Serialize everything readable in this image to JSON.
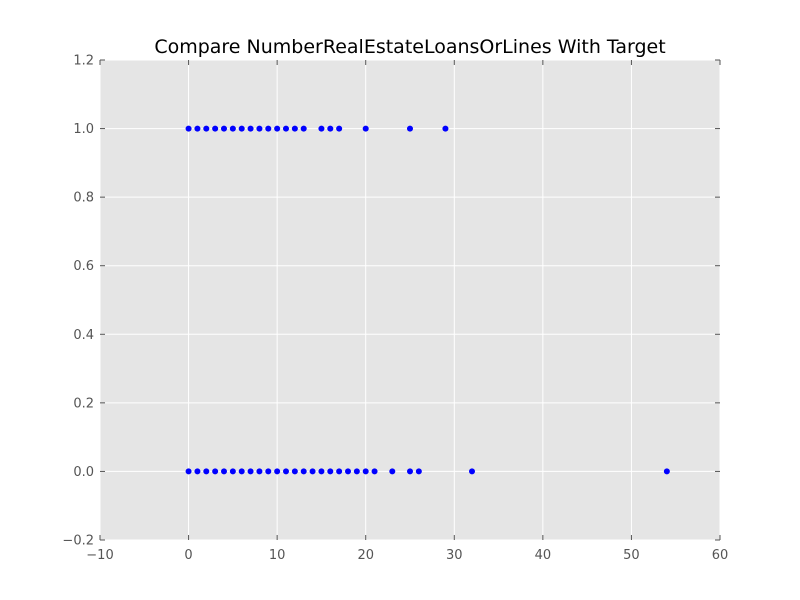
{
  "chart_data": {
    "type": "scatter",
    "title": "Compare NumberRealEstateLoansOrLines With Target",
    "xlabel": "",
    "ylabel": "",
    "xlim": [
      -10,
      60
    ],
    "ylim": [
      -0.2,
      1.2
    ],
    "x_ticks": [
      "−10",
      "0",
      "10",
      "20",
      "30",
      "40",
      "50",
      "60"
    ],
    "x_tick_values": [
      -10,
      0,
      10,
      20,
      30,
      40,
      50,
      60
    ],
    "y_ticks": [
      "−0.2",
      "0.0",
      "0.2",
      "0.4",
      "0.6",
      "0.8",
      "1.0",
      "1.2"
    ],
    "y_tick_values": [
      -0.2,
      0.0,
      0.2,
      0.4,
      0.6,
      0.8,
      1.0,
      1.2
    ],
    "grid": true,
    "colors": {
      "plot_background": "#e5e5e5",
      "grid": "#ffffff",
      "marker": "#0000ff"
    },
    "series": [
      {
        "points": [
          [
            0,
            1
          ],
          [
            1,
            1
          ],
          [
            2,
            1
          ],
          [
            3,
            1
          ],
          [
            4,
            1
          ],
          [
            5,
            1
          ],
          [
            6,
            1
          ],
          [
            7,
            1
          ],
          [
            8,
            1
          ],
          [
            9,
            1
          ],
          [
            10,
            1
          ],
          [
            11,
            1
          ],
          [
            12,
            1
          ],
          [
            13,
            1
          ],
          [
            15,
            1
          ],
          [
            16,
            1
          ],
          [
            17,
            1
          ],
          [
            20,
            1
          ],
          [
            25,
            1
          ],
          [
            29,
            1
          ],
          [
            0,
            0
          ],
          [
            1,
            0
          ],
          [
            2,
            0
          ],
          [
            3,
            0
          ],
          [
            4,
            0
          ],
          [
            5,
            0
          ],
          [
            6,
            0
          ],
          [
            7,
            0
          ],
          [
            8,
            0
          ],
          [
            9,
            0
          ],
          [
            10,
            0
          ],
          [
            11,
            0
          ],
          [
            12,
            0
          ],
          [
            13,
            0
          ],
          [
            14,
            0
          ],
          [
            15,
            0
          ],
          [
            16,
            0
          ],
          [
            17,
            0
          ],
          [
            18,
            0
          ],
          [
            19,
            0
          ],
          [
            20,
            0
          ],
          [
            21,
            0
          ],
          [
            23,
            0
          ],
          [
            25,
            0
          ],
          [
            26,
            0
          ],
          [
            32,
            0
          ],
          [
            54,
            0
          ]
        ]
      }
    ]
  }
}
